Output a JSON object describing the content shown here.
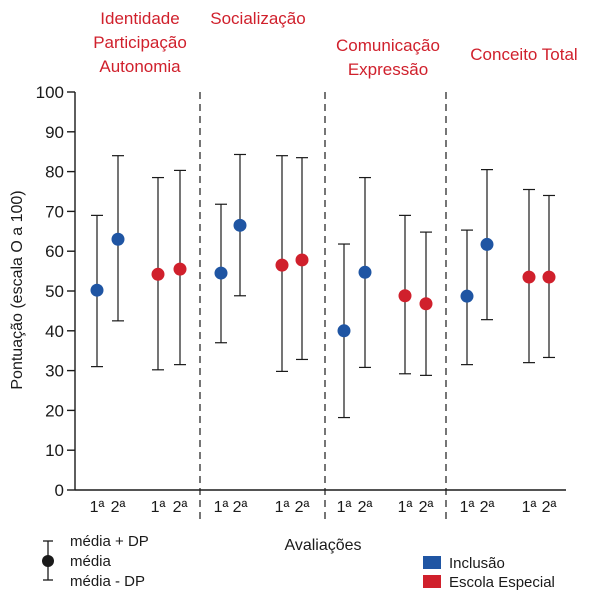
{
  "colors": {
    "inclusao": "#1f55a3",
    "especial": "#d0202c",
    "axis": "#1a1a1a"
  },
  "chart_data": {
    "type": "errorbar",
    "ylabel": "Pontuação (escala O a 100)",
    "xlabel": "Avaliações",
    "ylim": [
      0,
      100
    ],
    "yticks": [
      "0",
      "10",
      "20",
      "30",
      "40",
      "50",
      "60",
      "70",
      "80",
      "90",
      "100"
    ],
    "groups": [
      {
        "lines": [
          "Identidade",
          "Participação",
          "Autonomia"
        ]
      },
      {
        "lines": [
          "Socialização"
        ]
      },
      {
        "lines": [
          "Comunicação",
          "Expressão"
        ]
      },
      {
        "lines": [
          "Conceito Total"
        ]
      }
    ],
    "eval_labels": [
      "1ª",
      "2ª"
    ],
    "series": [
      {
        "name": "Inclusão",
        "color": "#1f55a3",
        "points": [
          {
            "group": 0,
            "eval": "1ª",
            "mean": 50.2,
            "low": 31.0,
            "high": 69.0
          },
          {
            "group": 0,
            "eval": "2ª",
            "mean": 63.0,
            "low": 42.5,
            "high": 84.0
          },
          {
            "group": 1,
            "eval": "1ª",
            "mean": 54.5,
            "low": 37.0,
            "high": 71.8
          },
          {
            "group": 1,
            "eval": "2ª",
            "mean": 66.5,
            "low": 48.8,
            "high": 84.3
          },
          {
            "group": 2,
            "eval": "1ª",
            "mean": 40.0,
            "low": 18.2,
            "high": 61.8
          },
          {
            "group": 2,
            "eval": "2ª",
            "mean": 54.7,
            "low": 30.8,
            "high": 78.5
          },
          {
            "group": 3,
            "eval": "1ª",
            "mean": 48.7,
            "low": 31.5,
            "high": 65.3
          },
          {
            "group": 3,
            "eval": "2ª",
            "mean": 61.7,
            "low": 42.8,
            "high": 80.5
          }
        ]
      },
      {
        "name": "Escola Especial",
        "color": "#d0202c",
        "points": [
          {
            "group": 0,
            "eval": "1ª",
            "mean": 54.2,
            "low": 30.2,
            "high": 78.5
          },
          {
            "group": 0,
            "eval": "2ª",
            "mean": 55.5,
            "low": 31.5,
            "high": 80.3
          },
          {
            "group": 1,
            "eval": "1ª",
            "mean": 56.5,
            "low": 29.8,
            "high": 84.0
          },
          {
            "group": 1,
            "eval": "2ª",
            "mean": 57.8,
            "low": 32.8,
            "high": 83.5
          },
          {
            "group": 2,
            "eval": "1ª",
            "mean": 48.8,
            "low": 29.2,
            "high": 69.0
          },
          {
            "group": 2,
            "eval": "2ª",
            "mean": 46.8,
            "low": 28.8,
            "high": 64.8
          },
          {
            "group": 3,
            "eval": "1ª",
            "mean": 53.5,
            "low": 32.0,
            "high": 75.5
          },
          {
            "group": 3,
            "eval": "2ª",
            "mean": 53.5,
            "low": 33.3,
            "high": 74.0
          }
        ]
      }
    ],
    "key": {
      "upper": "média + DP",
      "middle": "média",
      "lower": "média - DP"
    }
  }
}
